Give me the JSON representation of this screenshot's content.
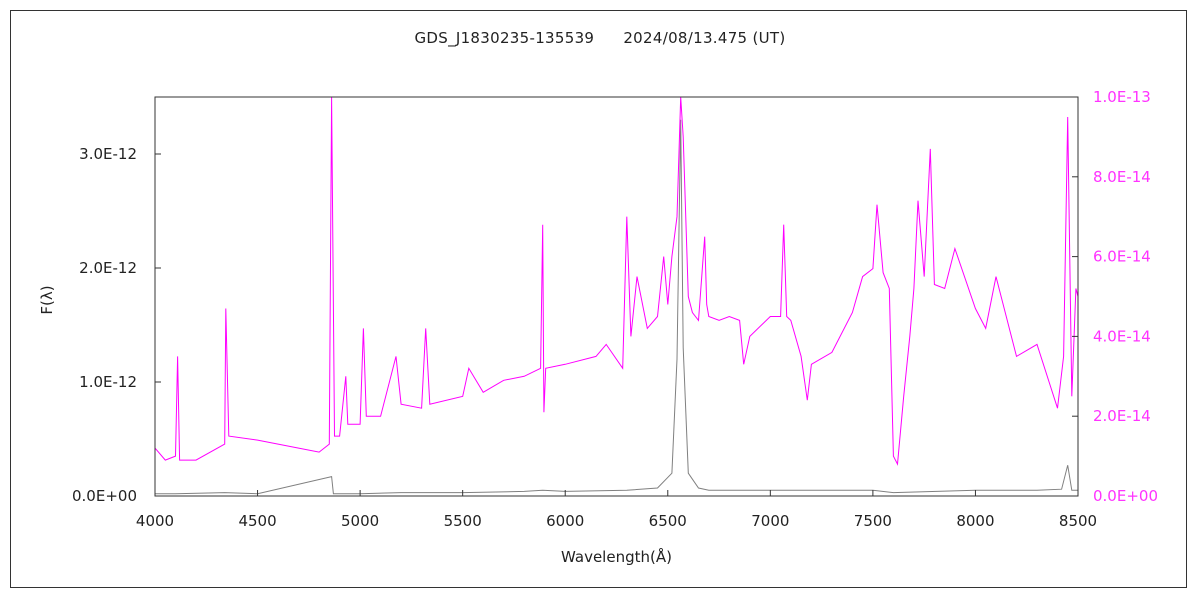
{
  "header": {
    "object": "GDS_J1830235-135539",
    "date": "2024/08/13.475 (UT)"
  },
  "chart_data": {
    "type": "line",
    "xlabel": "Wavelength(Å)",
    "ylabel": "F(λ)",
    "xlim": [
      4000,
      8500
    ],
    "ylim_left": [
      0,
      3.5e-12
    ],
    "ylim_right": [
      0,
      1e-13
    ],
    "x_ticks": [
      "4000",
      "4500",
      "5000",
      "5500",
      "6000",
      "6500",
      "7000",
      "7500",
      "8000",
      "8500"
    ],
    "y_ticks_left": [
      "0.0E+00",
      "1.0E-12",
      "2.0E-12",
      "3.0E-12"
    ],
    "y_ticks_right": [
      "0.0E+00",
      "2.0E-14",
      "4.0E-14",
      "6.0E-14",
      "8.0E-14",
      "1.0E-13"
    ],
    "colors": {
      "main": "#808080",
      "scaled": "#ff00ff",
      "axis": "#333333",
      "right_ticks": "#ff33ff"
    },
    "series": [
      {
        "axis": "left",
        "x": [
          4000,
          4100,
          4340,
          4500,
          4861,
          4870,
          4900,
          5000,
          5200,
          5500,
          5800,
          5890,
          6000,
          6300,
          6450,
          6520,
          6545,
          6563,
          6575,
          6600,
          6650,
          6700,
          7000,
          7500,
          7600,
          8000,
          8300,
          8420,
          8450,
          8470,
          8500
        ],
        "y": [
          2e-14,
          2e-14,
          3e-14,
          2e-14,
          1.7e-13,
          2e-14,
          2e-14,
          2e-14,
          3e-14,
          3e-14,
          4e-14,
          5e-14,
          4e-14,
          5e-14,
          7e-14,
          2e-13,
          1.2e-12,
          3.3e-12,
          1.3e-12,
          2e-13,
          7e-14,
          5e-14,
          5e-14,
          5e-14,
          3e-14,
          5e-14,
          5e-14,
          6e-14,
          2.7e-13,
          5e-14,
          5e-14
        ]
      },
      {
        "axis": "right",
        "x": [
          4000,
          4050,
          4100,
          4110,
          4120,
          4200,
          4340,
          4345,
          4360,
          4500,
          4700,
          4800,
          4850,
          4861,
          4875,
          4900,
          4930,
          4940,
          5000,
          5016,
          5030,
          5100,
          5175,
          5200,
          5300,
          5320,
          5340,
          5500,
          5530,
          5600,
          5700,
          5800,
          5880,
          5890,
          5896,
          5905,
          6000,
          6150,
          6200,
          6280,
          6300,
          6320,
          6350,
          6400,
          6450,
          6480,
          6500,
          6520,
          6545,
          6563,
          6575,
          6600,
          6620,
          6650,
          6680,
          6690,
          6700,
          6750,
          6800,
          6850,
          6870,
          6900,
          7000,
          7050,
          7065,
          7080,
          7100,
          7150,
          7180,
          7200,
          7300,
          7400,
          7450,
          7500,
          7520,
          7550,
          7580,
          7600,
          7620,
          7650,
          7680,
          7700,
          7720,
          7750,
          7780,
          7800,
          7850,
          7900,
          8000,
          8050,
          8100,
          8200,
          8300,
          8400,
          8430,
          8450,
          8470,
          8490,
          8500
        ],
        "y": [
          1.2e-14,
          9e-15,
          1e-14,
          3.5e-14,
          9e-15,
          9e-15,
          1.3e-14,
          4.7e-14,
          1.5e-14,
          1.4e-14,
          1.2e-14,
          1.1e-14,
          1.3e-14,
          1e-13,
          1.5e-14,
          1.5e-14,
          3e-14,
          1.8e-14,
          1.8e-14,
          4.2e-14,
          2e-14,
          2e-14,
          3.5e-14,
          2.3e-14,
          2.2e-14,
          4.2e-14,
          2.3e-14,
          2.5e-14,
          3.2e-14,
          2.6e-14,
          2.9e-14,
          3e-14,
          3.2e-14,
          6.8e-14,
          2.1e-14,
          3.2e-14,
          3.3e-14,
          3.5e-14,
          3.8e-14,
          3.2e-14,
          7e-14,
          4e-14,
          5.5e-14,
          4.2e-14,
          4.5e-14,
          6e-14,
          4.8e-14,
          6e-14,
          7e-14,
          1e-13,
          9e-14,
          5e-14,
          4.6e-14,
          4.4e-14,
          6.5e-14,
          4.8e-14,
          4.5e-14,
          4.4e-14,
          4.5e-14,
          4.4e-14,
          3.3e-14,
          4e-14,
          4.5e-14,
          4.5e-14,
          6.8e-14,
          4.5e-14,
          4.4e-14,
          3.5e-14,
          2.4e-14,
          3.3e-14,
          3.6e-14,
          4.6e-14,
          5.5e-14,
          5.7e-14,
          7.3e-14,
          5.6e-14,
          5.2e-14,
          1e-14,
          8e-15,
          2.5e-14,
          4e-14,
          5.2e-14,
          7.4e-14,
          5.5e-14,
          8.7e-14,
          5.3e-14,
          5.2e-14,
          6.2e-14,
          4.7e-14,
          4.2e-14,
          5.5e-14,
          3.5e-14,
          3.8e-14,
          2.2e-14,
          3.5e-14,
          9.5e-14,
          2.5e-14,
          5.2e-14,
          5e-14
        ]
      }
    ]
  }
}
